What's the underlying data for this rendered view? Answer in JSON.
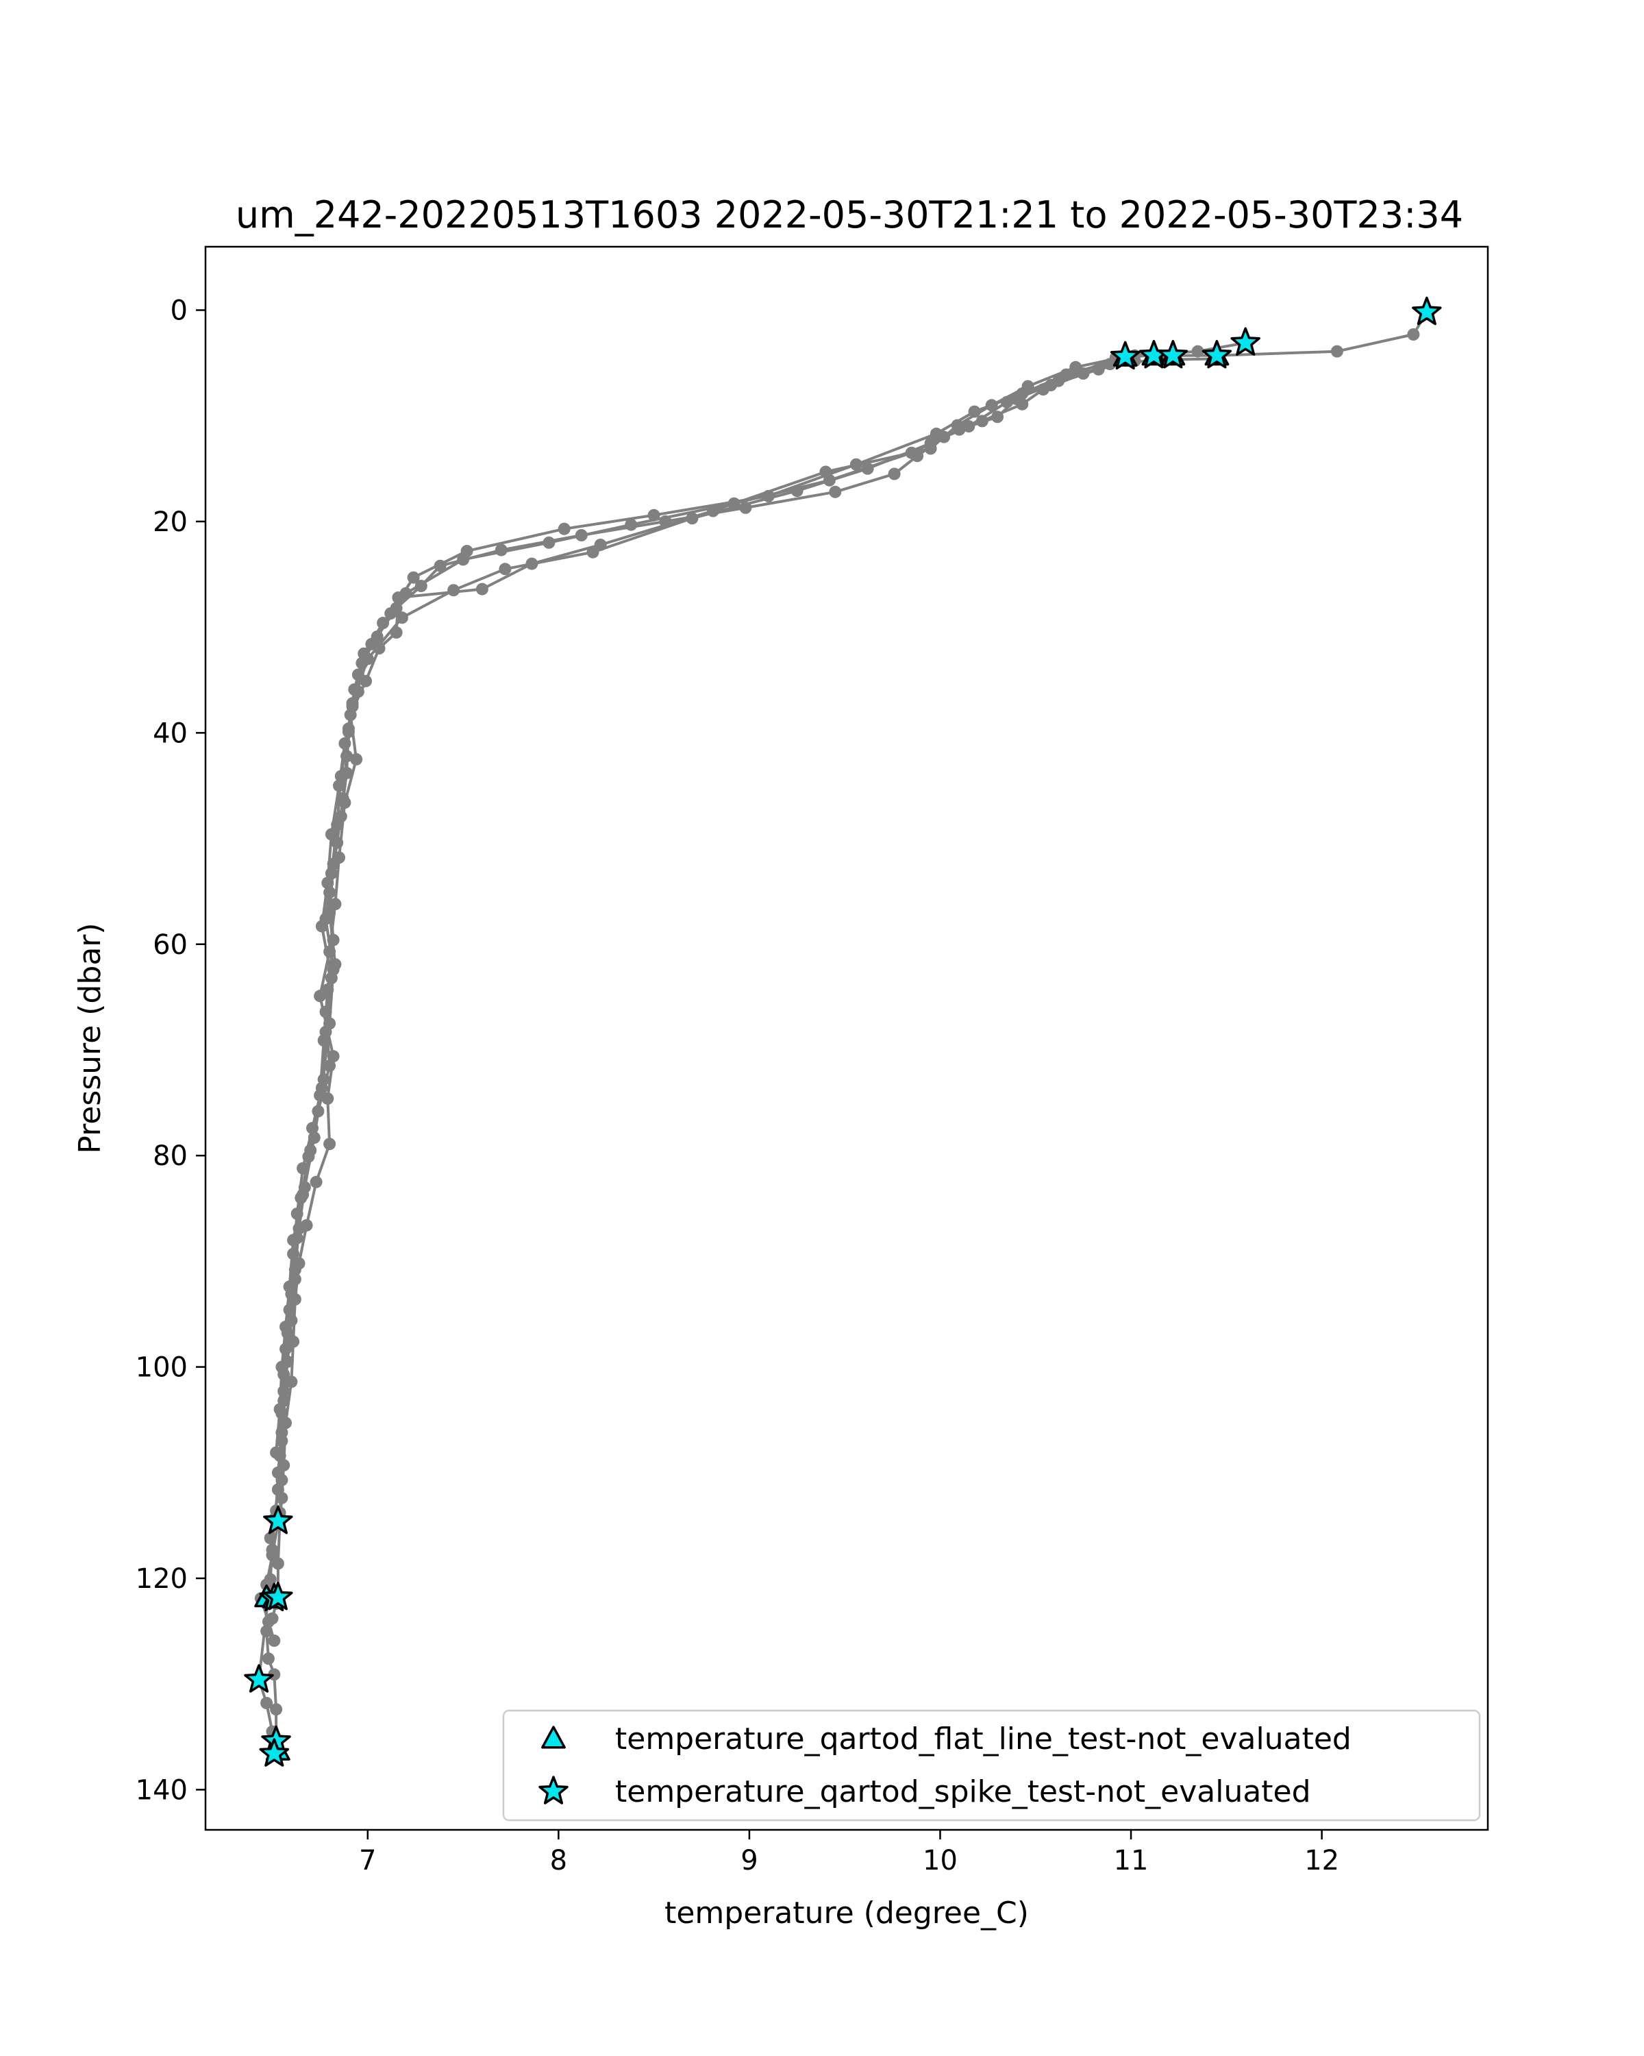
{
  "chart_data": {
    "type": "line",
    "title": "um_242-20220513T1603 2022-05-30T21:21 to 2022-05-30T23:34",
    "xlabel": "temperature (degree_C)",
    "ylabel": "Pressure (dbar)",
    "xlim": [
      6.15,
      12.87
    ],
    "ylim": [
      143.8,
      -6.0
    ],
    "y_inverted": true,
    "x_ticks": [
      7,
      8,
      9,
      10,
      11,
      12
    ],
    "y_ticks": [
      0,
      20,
      40,
      60,
      80,
      100,
      120,
      140
    ],
    "grid": false,
    "legend_position": "lower-right",
    "line_color": "#808080",
    "marker_fill": "#00e5ee",
    "series": [
      {
        "name": "",
        "color": "#808080",
        "x": [
          12.55,
          12.48,
          12.08,
          11.45,
          11.22,
          11.12,
          10.97,
          10.71,
          10.46,
          10.27,
          10.09,
          9.95,
          9.4,
          8.81,
          8.22,
          7.86,
          7.6,
          7.16,
          7.15,
          7.06,
          6.99,
          6.91,
          6.94,
          6.88,
          6.85,
          6.83,
          6.8,
          6.75,
          6.82,
          6.79,
          6.8,
          6.73,
          6.68,
          6.64,
          6.62,
          6.61,
          6.6,
          6.57,
          6.56,
          6.55,
          6.54,
          6.53,
          6.53,
          6.52,
          6.5,
          6.47,
          6.48,
          6.51,
          6.52,
          6.52,
          6.51
        ],
        "y": [
          0.2,
          2.3,
          3.9,
          4.3,
          4.3,
          4.3,
          4.4,
          5.4,
          7.2,
          9.0,
          10.9,
          13.1,
          15.3,
          19.0,
          22.2,
          24.0,
          26.4,
          27.2,
          30.5,
          32.0,
          35.1,
          38.3,
          42.5,
          46.6,
          51.8,
          56.2,
          60.7,
          64.9,
          70.6,
          74.6,
          78.9,
          82.5,
          86.6,
          90.2,
          93.6,
          97.6,
          101.4,
          105.3,
          109.3,
          112.4,
          114.6,
          118.6,
          121.8,
          122.4,
          123.8,
          125.0,
          127.6,
          129.1,
          132.4,
          135.4,
          136.6
        ]
      },
      {
        "name": "",
        "color": "#808080",
        "x": [
          11.45,
          11.16,
          10.89,
          10.75,
          10.54,
          10.43,
          10.22,
          10.02,
          9.88,
          9.76,
          9.45,
          8.98,
          8.56,
          8.12,
          7.7,
          7.38,
          7.28,
          7.15,
          7.05,
          6.97,
          6.95,
          6.9,
          6.89,
          6.86,
          6.82,
          6.8,
          6.83,
          6.78,
          6.8,
          6.74,
          6.69,
          6.65,
          6.63,
          6.62,
          6.6,
          6.58,
          6.56,
          6.55,
          6.55,
          6.54,
          6.5,
          6.47,
          6.44,
          6.48,
          6.51
        ],
        "y": [
          4.6,
          4.7,
          5.1,
          6.0,
          7.5,
          8.9,
          10.5,
          12.0,
          13.8,
          15.5,
          17.2,
          18.7,
          20.0,
          21.3,
          22.7,
          24.2,
          26.1,
          28.2,
          30.9,
          33.4,
          36.1,
          39.6,
          43.8,
          47.9,
          52.4,
          57.0,
          61.9,
          66.4,
          71.5,
          75.8,
          80.1,
          84.0,
          87.8,
          91.7,
          95.6,
          99.5,
          103.2,
          107.0,
          110.7,
          113.8,
          117.8,
          120.6,
          121.9,
          124.1,
          125.9
        ]
      },
      {
        "name": "",
        "color": "#808080",
        "x": [
          11.6,
          11.35,
          11.02,
          10.66,
          10.43,
          10.18,
          9.98,
          9.56,
          9.1,
          8.5,
          8.03,
          7.52,
          7.24,
          7.12,
          7.02,
          6.95,
          6.92,
          6.88,
          6.85,
          6.81,
          6.79,
          6.76,
          6.81,
          6.78,
          6.77,
          6.71,
          6.66,
          6.63,
          6.61,
          6.6,
          6.58,
          6.56,
          6.55,
          6.54,
          6.53,
          6.51,
          6.5,
          6.49,
          6.43,
          6.47,
          6.5,
          6.52
        ],
        "y": [
          3.1,
          3.9,
          4.3,
          6.1,
          7.9,
          9.6,
          11.7,
          14.6,
          17.6,
          19.4,
          20.7,
          22.8,
          25.3,
          28.7,
          31.6,
          34.5,
          37.5,
          41.0,
          45.0,
          49.6,
          54.2,
          58.3,
          63.2,
          68.3,
          72.8,
          77.4,
          81.2,
          85.5,
          89.3,
          93.1,
          96.8,
          100.7,
          104.4,
          108.4,
          111.6,
          114.4,
          117.3,
          120.1,
          129.6,
          131.8,
          134.5,
          136.3
        ]
      },
      {
        "name": "",
        "color": "#808080",
        "x": [
          11.12,
          10.92,
          10.62,
          10.4,
          10.3,
          10.1,
          9.85,
          9.42,
          8.92,
          8.38,
          7.95,
          7.5,
          7.2,
          7.08,
          6.98,
          6.93,
          6.9,
          6.86,
          6.84,
          6.81,
          6.78,
          6.82,
          6.8,
          6.76,
          6.72,
          6.67,
          6.64,
          6.62,
          6.59,
          6.57,
          6.56,
          6.55,
          6.53,
          6.52,
          6.49
        ],
        "y": [
          4.1,
          4.5,
          6.7,
          8.4,
          10.1,
          11.3,
          13.5,
          16.1,
          18.3,
          20.3,
          22.0,
          23.6,
          26.8,
          29.6,
          32.5,
          35.9,
          39.9,
          44.1,
          48.7,
          53.3,
          57.6,
          62.4,
          67.5,
          73.6,
          78.3,
          83.0,
          86.9,
          90.8,
          94.6,
          98.3,
          102.3,
          106.2,
          110.0,
          113.6,
          116.2
        ]
      },
      {
        "name": "",
        "color": "#808080",
        "x": [
          11.02,
          10.83,
          10.58,
          10.35,
          10.15,
          9.95,
          9.62,
          9.25,
          8.7,
          8.18,
          7.72,
          7.45,
          7.18,
          7.0,
          6.92,
          6.89,
          6.87,
          6.84,
          6.8,
          6.82,
          6.79,
          6.77,
          6.75,
          6.7,
          6.66,
          6.61,
          6.59,
          6.57,
          6.55,
          6.54,
          6.52
        ],
        "y": [
          4.8,
          5.6,
          7.1,
          8.7,
          11.0,
          12.6,
          15.0,
          17.1,
          19.7,
          22.9,
          24.5,
          26.5,
          29.1,
          33.0,
          37.2,
          42.2,
          46.2,
          50.4,
          55.1,
          59.6,
          64.3,
          69.1,
          74.3,
          79.5,
          83.7,
          88.0,
          92.4,
          96.2,
          100.0,
          104.0,
          108.1
        ]
      }
    ],
    "flags": [
      {
        "name": "temperature_qartod_flat_line_test-not_evaluated",
        "marker": "triangle",
        "x": [
          10.97,
          11.12,
          11.22,
          11.45,
          6.47,
          6.51,
          6.53
        ],
        "y": [
          4.4,
          4.3,
          4.3,
          4.3,
          121.8,
          121.9,
          136.3
        ]
      },
      {
        "name": "temperature_qartod_spike_test-not_evaluated",
        "marker": "star",
        "x": [
          12.55,
          11.6,
          10.97,
          11.12,
          11.22,
          11.45,
          6.53,
          6.51,
          6.53,
          6.43,
          6.52,
          6.51
        ],
        "y": [
          0.2,
          3.1,
          4.4,
          4.3,
          4.3,
          4.3,
          114.6,
          121.9,
          121.8,
          129.6,
          135.4,
          136.6
        ]
      }
    ]
  }
}
